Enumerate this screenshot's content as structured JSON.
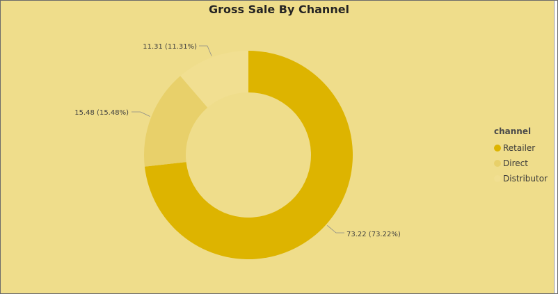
{
  "chart_data": {
    "type": "pie",
    "variant": "donut",
    "title": "Gross Sale By Channel",
    "categories": [
      "Retailer",
      "Direct",
      "Distributor"
    ],
    "values": [
      73.22,
      15.48,
      11.31
    ],
    "data_labels": [
      "73.22 (73.22%)",
      "15.48 (15.48%)",
      "11.31 (11.31%)"
    ],
    "colors": [
      "#DDB400",
      "#E8D06A",
      "#F1DF91"
    ],
    "legend": {
      "title": "channel",
      "position": "right",
      "items": [
        "Retailer",
        "Direct",
        "Distributor"
      ]
    },
    "grid": false
  }
}
